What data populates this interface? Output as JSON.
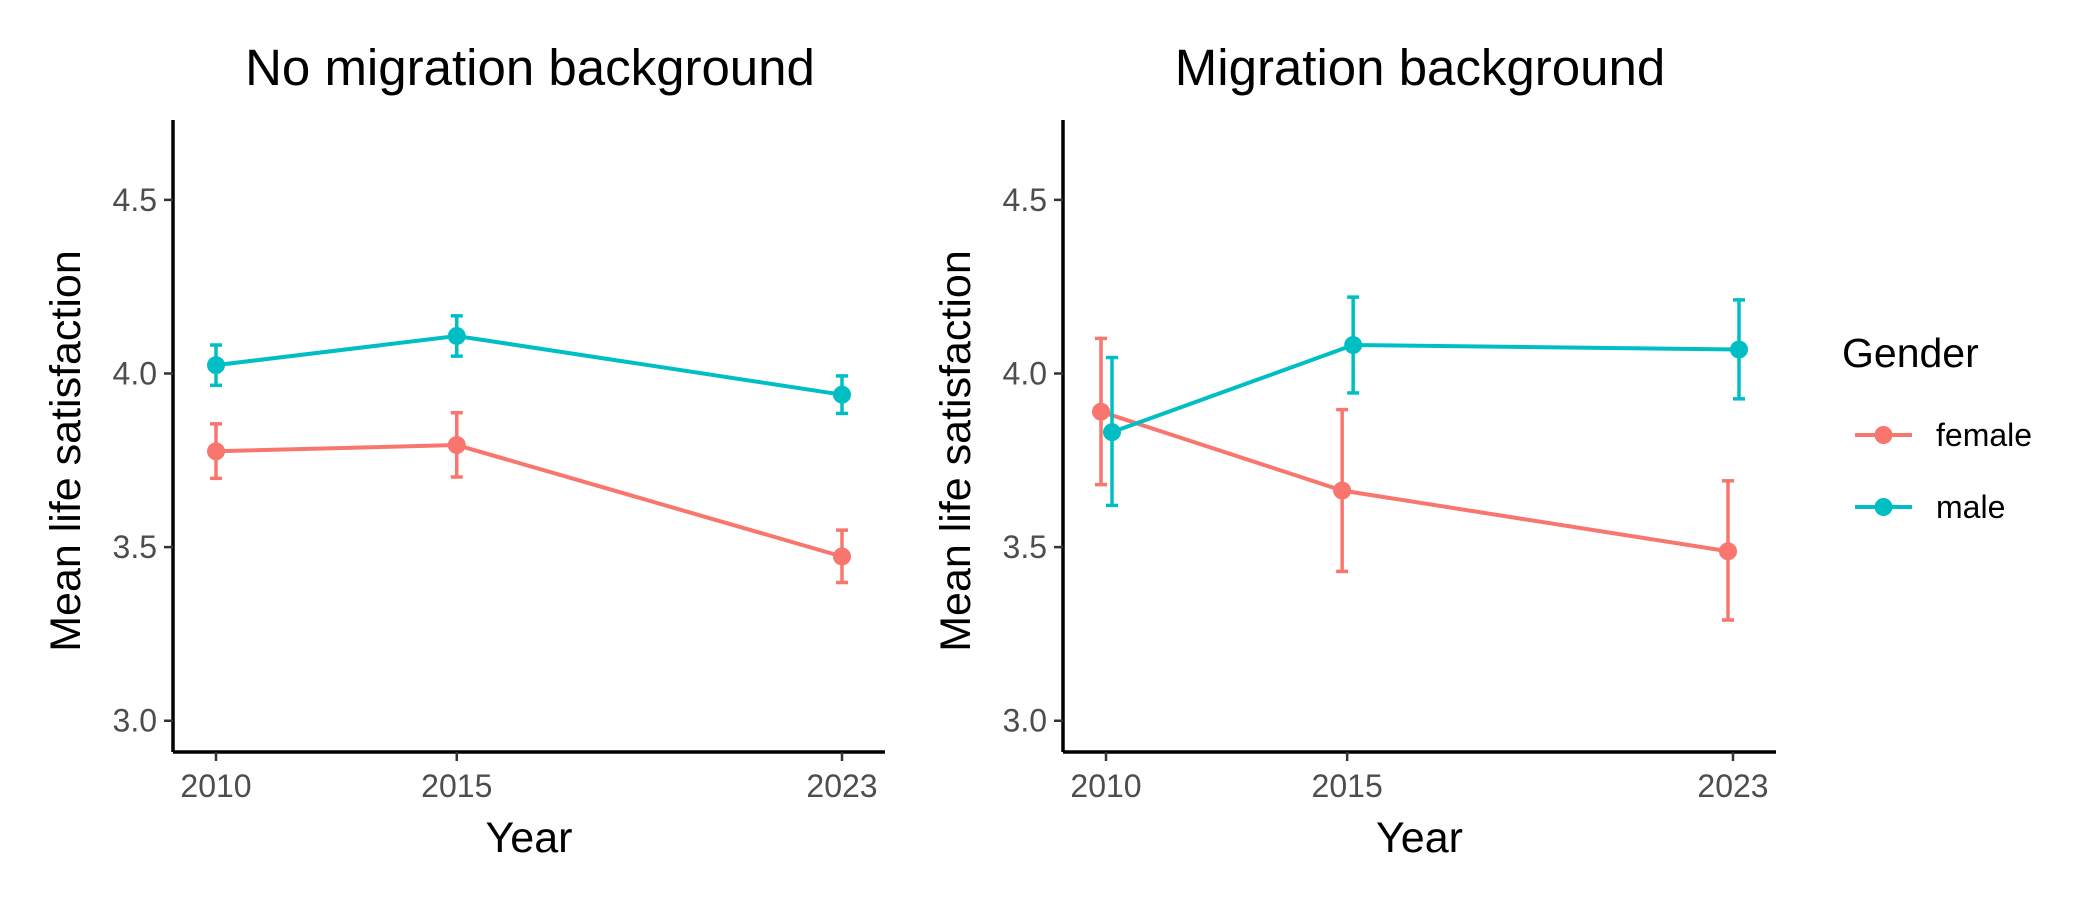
{
  "chart_data": [
    {
      "type": "line",
      "title": "No migration background",
      "xlabel": "Year",
      "ylabel": "Mean life satisfaction",
      "x": [
        2010,
        2015,
        2023
      ],
      "ylim": [
        2.91,
        4.73
      ],
      "yticks": [
        3.0,
        3.5,
        4.0,
        4.5
      ],
      "grid": false,
      "series": [
        {
          "name": "female",
          "color": "#F8766D",
          "values": [
            3.776,
            3.794,
            3.473
          ],
          "lower": [
            3.698,
            3.702,
            3.398
          ],
          "upper": [
            3.855,
            3.887,
            3.549
          ]
        },
        {
          "name": "male",
          "color": "#00BFC4",
          "values": [
            4.024,
            4.108,
            3.939
          ],
          "lower": [
            3.966,
            4.05,
            3.885
          ],
          "upper": [
            4.082,
            4.166,
            3.993
          ]
        }
      ]
    },
    {
      "type": "line",
      "title": "Migration background",
      "xlabel": "Year",
      "ylabel": "Mean life satisfaction",
      "x": [
        2010,
        2015,
        2023
      ],
      "ylim": [
        2.91,
        4.73
      ],
      "yticks": [
        3.0,
        3.5,
        4.0,
        4.5
      ],
      "grid": false,
      "series": [
        {
          "name": "female",
          "color": "#F8766D",
          "values": [
            3.89,
            3.663,
            3.488
          ],
          "lower": [
            3.68,
            3.43,
            3.29
          ],
          "upper": [
            4.101,
            3.896,
            3.691
          ]
        },
        {
          "name": "male",
          "color": "#00BFC4",
          "values": [
            3.831,
            4.082,
            4.069
          ],
          "lower": [
            3.62,
            3.944,
            3.927
          ],
          "upper": [
            4.046,
            4.22,
            4.212
          ]
        }
      ]
    }
  ],
  "legend": {
    "title": "Gender",
    "position": "right",
    "items": [
      {
        "label": "female",
        "color": "#F8766D"
      },
      {
        "label": "male",
        "color": "#00BFC4"
      }
    ]
  }
}
